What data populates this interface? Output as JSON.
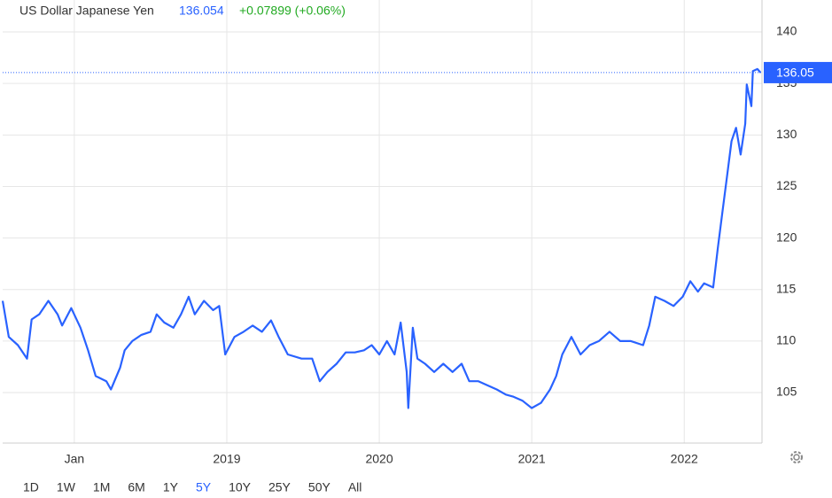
{
  "chart_data": {
    "type": "line",
    "title": "US Dollar Japanese Yen",
    "last_price": {
      "value": 136.054,
      "label": "136.05"
    },
    "change": "+0.07899 (+0.06%)",
    "series": [
      {
        "name": "US Dollar Japanese Yen",
        "color": "#2962ff",
        "x": [
          2017.53,
          2017.57,
          2017.63,
          2017.69,
          2017.72,
          2017.77,
          2017.83,
          2017.89,
          2017.92,
          2017.98,
          2018.04,
          2018.09,
          2018.14,
          2018.21,
          2018.24,
          2018.3,
          2018.33,
          2018.38,
          2018.44,
          2018.5,
          2018.54,
          2018.59,
          2018.65,
          2018.7,
          2018.75,
          2018.79,
          2018.85,
          2018.91,
          2018.95,
          2018.99,
          2019.05,
          2019.11,
          2019.17,
          2019.23,
          2019.29,
          2019.34,
          2019.4,
          2019.49,
          2019.56,
          2019.61,
          2019.66,
          2019.72,
          2019.78,
          2019.84,
          2019.9,
          2019.95,
          2020.0,
          2020.05,
          2020.1,
          2020.14,
          2020.18,
          2020.19,
          2020.22,
          2020.25,
          2020.3,
          2020.36,
          2020.42,
          2020.48,
          2020.54,
          2020.59,
          2020.65,
          2020.71,
          2020.77,
          2020.83,
          2020.88,
          2020.94,
          2021.0,
          2021.06,
          2021.12,
          2021.16,
          2021.2,
          2021.26,
          2021.32,
          2021.38,
          2021.44,
          2021.51,
          2021.58,
          2021.65,
          2021.73,
          2021.77,
          2021.81,
          2021.87,
          2021.93,
          2021.99,
          2022.04,
          2022.09,
          2022.13,
          2022.19,
          2022.22,
          2022.25,
          2022.28,
          2022.31,
          2022.34,
          2022.37,
          2022.4,
          2022.41,
          2022.44,
          2022.45,
          2022.48,
          2022.5
        ],
        "values": [
          113.9,
          110.4,
          109.6,
          108.3,
          112.1,
          112.6,
          113.9,
          112.6,
          111.5,
          113.2,
          111.3,
          109.1,
          106.6,
          106.1,
          105.3,
          107.4,
          109.1,
          110.0,
          110.6,
          110.9,
          112.6,
          111.8,
          111.3,
          112.6,
          114.3,
          112.6,
          113.9,
          113.0,
          113.4,
          108.7,
          110.4,
          110.9,
          111.5,
          110.9,
          112.0,
          110.4,
          108.7,
          108.3,
          108.3,
          106.1,
          107.0,
          107.8,
          108.9,
          108.9,
          109.1,
          109.6,
          108.7,
          110.0,
          108.7,
          111.8,
          107.0,
          103.5,
          111.3,
          108.3,
          107.8,
          107.0,
          107.8,
          107.0,
          107.8,
          106.1,
          106.1,
          105.7,
          105.3,
          104.8,
          104.6,
          104.2,
          103.5,
          104.0,
          105.3,
          106.6,
          108.7,
          110.4,
          108.7,
          109.6,
          110.0,
          110.9,
          110.0,
          110.0,
          109.6,
          111.5,
          114.3,
          113.9,
          113.4,
          114.3,
          115.8,
          114.8,
          115.6,
          115.2,
          119.0,
          122.5,
          125.9,
          129.4,
          130.7,
          128.1,
          131.1,
          134.9,
          132.8,
          136.2,
          136.4,
          136.054
        ]
      }
    ],
    "xlim": [
      2017.53,
      2022.51
    ],
    "xticks": [
      {
        "value": 2018,
        "label": "Jan"
      },
      2019,
      2020,
      2021,
      2022
    ],
    "ylim": [
      100.1,
      143.1
    ],
    "yticks": [
      105,
      110,
      115,
      120,
      125,
      130,
      135,
      140
    ],
    "grid": true,
    "ranges": [
      "1D",
      "1W",
      "1M",
      "6M",
      "1Y",
      "5Y",
      "10Y",
      "25Y",
      "50Y",
      "All"
    ],
    "selected_range": "5Y"
  }
}
